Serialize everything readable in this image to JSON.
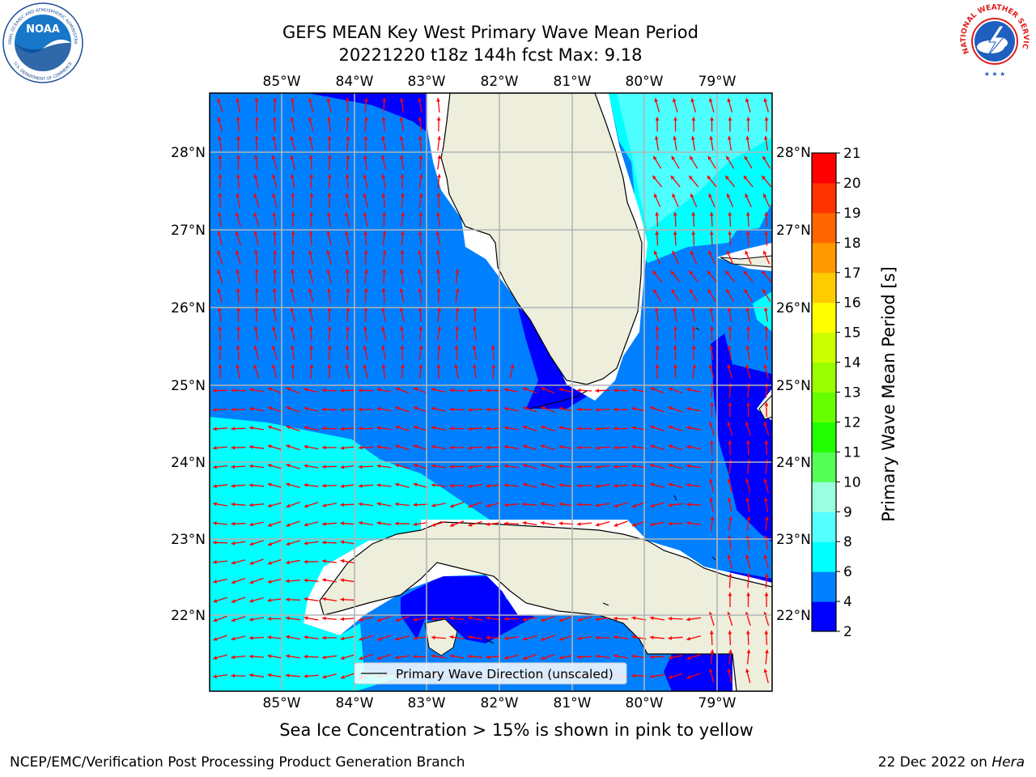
{
  "title": {
    "line1": "GEFS MEAN Key West Primary Wave Mean Period",
    "line2": "20221220 t18z 144h fcst   Max: 9.18"
  },
  "map": {
    "lon_labels": [
      "85°W",
      "84°W",
      "83°W",
      "82°W",
      "81°W",
      "80°W",
      "79°W"
    ],
    "lat_labels": [
      "28°N",
      "27°N",
      "26°N",
      "25°N",
      "24°N",
      "23°N",
      "22°N"
    ],
    "colors": {
      "land": "#eeeedd",
      "band_2_4": "#0000ff",
      "band_4_6": "#0080ff",
      "band_6_8": "#00ffff",
      "band_8_9": "#55ffff",
      "arrow": "#ff0000",
      "grid": "#b4b4b4",
      "coast": "#000000"
    }
  },
  "legend": {
    "text": "Primary Wave Direction (unscaled)"
  },
  "colorbar": {
    "label": "Primary Wave Mean Period [s]",
    "ticks": [
      "2",
      "4",
      "6",
      "8",
      "9",
      "10",
      "11",
      "12",
      "13",
      "14",
      "15",
      "16",
      "17",
      "18",
      "19",
      "20",
      "21"
    ],
    "colors": [
      "#0000ff",
      "#0080ff",
      "#00ffff",
      "#55ffff",
      "#99ffe0",
      "#55ff55",
      "#22ff00",
      "#66ff00",
      "#99ff00",
      "#ccff00",
      "#ffff00",
      "#ffcc00",
      "#ff9900",
      "#ff6600",
      "#ff3300",
      "#ff0000"
    ]
  },
  "footer": {
    "note": "Sea Ice Concentration > 15% is shown in pink to yellow",
    "left": "NCEP/EMC/Verification Post Processing Product Generation Branch",
    "right_date": "22 Dec 2022 on",
    "right_host": "Hera"
  },
  "logos": {
    "noaa_text": "NOAA",
    "noaa_ring_top": "NATIONAL OCEANIC AND ATMOSPHERIC ADMINISTRATION",
    "noaa_ring_bottom": "U.S. DEPARTMENT OF COMMERCE",
    "nws_ring": "NATIONAL WEATHER SERVICE"
  }
}
